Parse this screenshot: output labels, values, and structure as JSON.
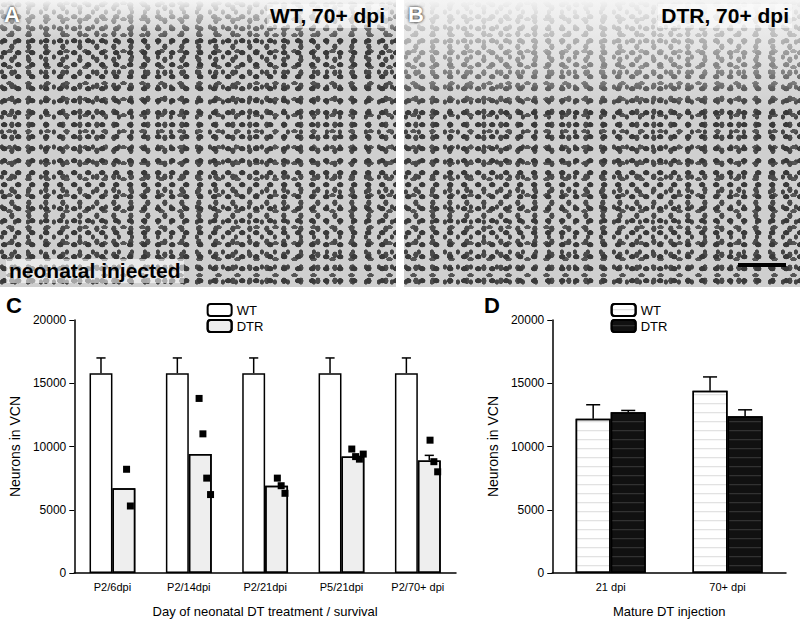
{
  "images": [
    {
      "panel_label": "A",
      "label": "WT, 70+ dpi",
      "annotation": "neonatal injected"
    },
    {
      "panel_label": "B",
      "label": "DTR, 70+ dpi"
    }
  ],
  "chart_data": [
    {
      "panel_label": "C",
      "type": "bar",
      "y_label": "Neurons in VCN",
      "x_label": "Day of neonatal DT treatment / survival",
      "categories": [
        "P2/6dpi",
        "P2/14dpi",
        "P2/21dpi",
        "P5/21dpi",
        "P2/70+ dpi"
      ],
      "series": [
        {
          "name": "WT",
          "color": "#ffffff",
          "values": [
            15800,
            15800,
            15800,
            15800,
            15800
          ],
          "errors": [
            1200,
            1200,
            1200,
            1200,
            1200
          ]
        },
        {
          "name": "DTR",
          "color": "#eeeeee",
          "values": [
            6700,
            9400,
            6900,
            9200,
            8900
          ],
          "errors": [
            null,
            null,
            null,
            null,
            400
          ],
          "points": [
            [
              8200,
              5300
            ],
            [
              13800,
              11000,
              7500,
              6200
            ],
            [
              7500,
              6900,
              6300
            ],
            [
              9800,
              9200,
              9000,
              9400
            ],
            [
              10500,
              8800,
              8000
            ]
          ]
        }
      ],
      "ylim": [
        0,
        20000
      ],
      "yticks": [
        0,
        5000,
        10000,
        15000,
        20000
      ],
      "grid": false,
      "legend": "top"
    },
    {
      "panel_label": "D",
      "type": "bar",
      "y_label": "Neurons in VCN",
      "x_label": "Mature DT injection",
      "categories": [
        "21 dpi",
        "70+ dpi"
      ],
      "series": [
        {
          "name": "WT",
          "color": "#ffffff",
          "values": [
            12200,
            14400
          ],
          "errors": [
            1100,
            1100
          ]
        },
        {
          "name": "DTR",
          "color": "#111111",
          "values": [
            12700,
            12400
          ],
          "errors": [
            150,
            500
          ]
        }
      ],
      "ylim": [
        0,
        20000
      ],
      "yticks": [
        0,
        5000,
        10000,
        15000,
        20000
      ],
      "grid": false,
      "legend": "top"
    }
  ]
}
